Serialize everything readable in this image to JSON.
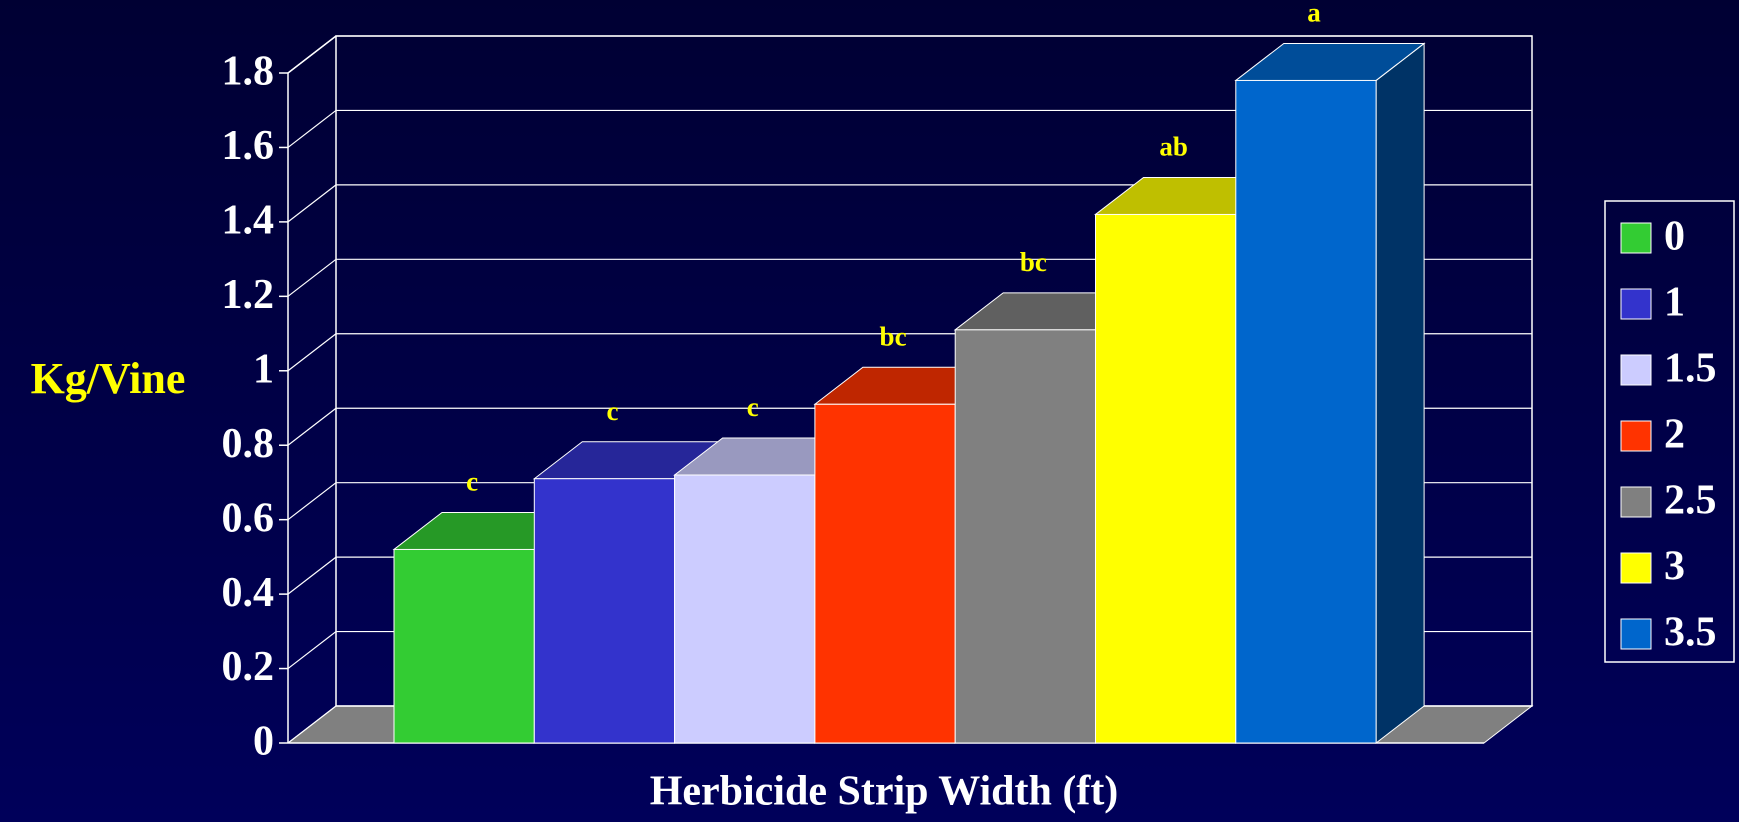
{
  "chart_data": {
    "type": "bar3d",
    "y_label": "Kg/Vine",
    "x_label": "Herbicide Strip Width (ft)",
    "categories": [
      "0",
      "1",
      "1.5",
      "2",
      "2.5",
      "3",
      "3.5"
    ],
    "values": [
      0.52,
      0.71,
      0.72,
      0.91,
      1.11,
      1.42,
      1.78
    ],
    "colors": [
      "#33cc33",
      "#3333cc",
      "#ccccff",
      "#ff3300",
      "#808080",
      "#ffff00",
      "#0066cc"
    ],
    "letters": [
      "c",
      "c",
      "c",
      "bc",
      "bc",
      "ab",
      "a"
    ],
    "ylim": [
      0,
      1.8
    ],
    "yticks": [
      0,
      0.2,
      0.4,
      0.6,
      0.8,
      1,
      1.2,
      1.4,
      1.6,
      1.8
    ],
    "grid": true,
    "legend": "right"
  }
}
